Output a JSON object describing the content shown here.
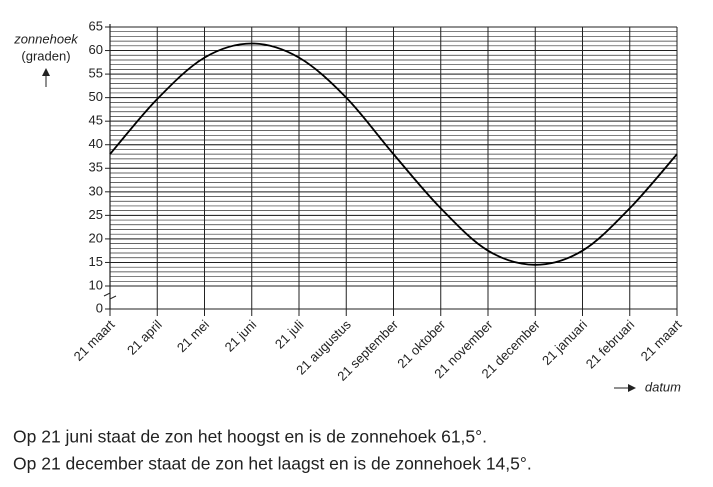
{
  "chart_data": {
    "type": "line",
    "ylabel": "zonnehoek",
    "ylabel_unit": "(graden)",
    "xlabel": "datum",
    "categories": [
      "21 maart",
      "21 april",
      "21 mei",
      "21 juni",
      "21 juli",
      "21 augustus",
      "21 september",
      "21 oktober",
      "21 november",
      "21 december",
      "21 januari",
      "21 februari",
      "21 maart"
    ],
    "values": [
      38,
      49.7,
      58.5,
      61.5,
      58.5,
      50,
      38,
      26.5,
      17.5,
      14.5,
      17.5,
      26.5,
      38
    ],
    "color": "#000000",
    "ylim": [
      0,
      65
    ],
    "yticks": [
      0,
      10,
      15,
      20,
      25,
      30,
      35,
      40,
      45,
      50,
      55,
      60,
      65
    ],
    "y_break": [
      0,
      10
    ],
    "minor_ytick_step": 1,
    "grid": true
  },
  "caption": [
    "Op 21 juni staat de zon het hoogst en is de zonnehoek 61,5°.",
    "Op 21 december staat de zon het laagst en is de zonnehoek 14,5°."
  ]
}
